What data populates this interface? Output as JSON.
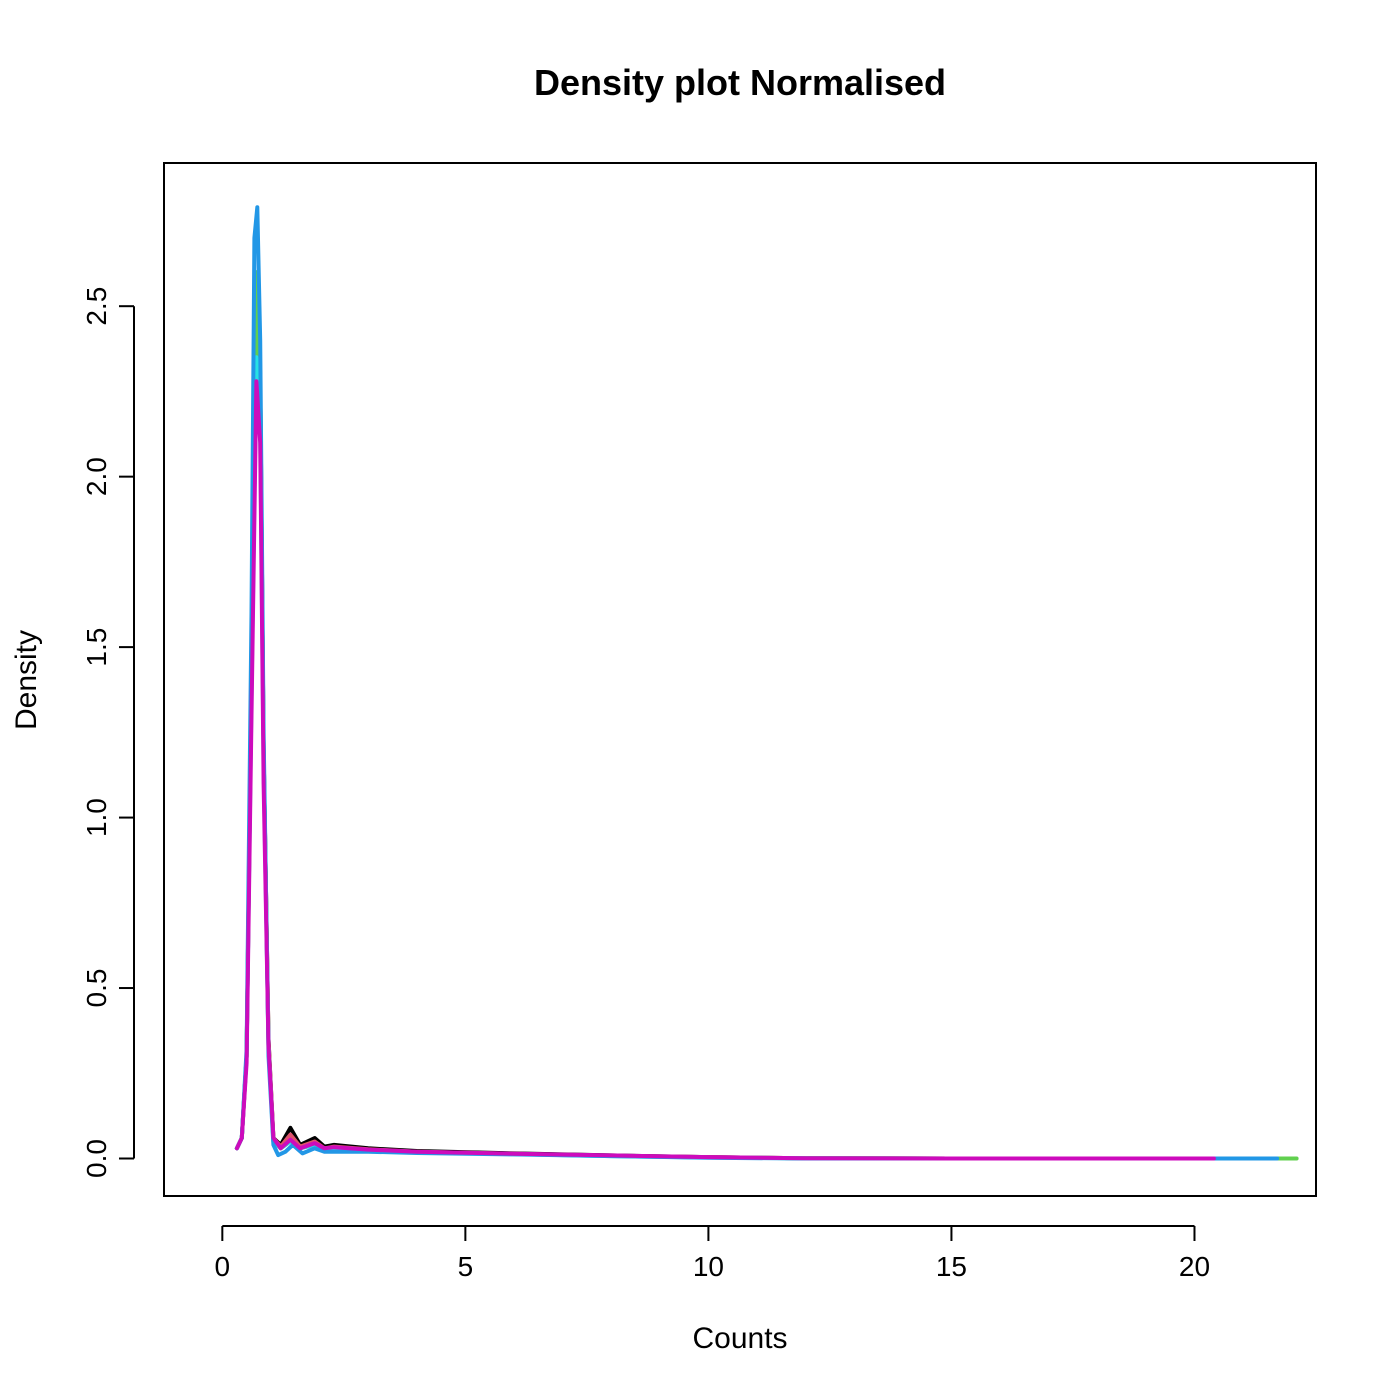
{
  "chart_data": {
    "type": "line",
    "title": "Density plot Normalised",
    "xlabel": "Counts",
    "ylabel": "Density",
    "xlim": [
      -1.2,
      22.5
    ],
    "ylim": [
      -0.11,
      2.92
    ],
    "x_ticks": [
      "0",
      "5",
      "10",
      "15",
      "20"
    ],
    "y_ticks": [
      "0.0",
      "0.5",
      "1.0",
      "1.5",
      "2.0",
      "2.5"
    ],
    "grid": false,
    "legend": "none",
    "series": [
      {
        "color": "#000000",
        "points": [
          [
            0.3,
            0.03
          ],
          [
            0.4,
            0.06
          ],
          [
            0.5,
            0.3
          ],
          [
            0.6,
            1.4
          ],
          [
            0.7,
            2.55
          ],
          [
            0.78,
            2.3
          ],
          [
            0.85,
            1.2
          ],
          [
            0.95,
            0.35
          ],
          [
            1.05,
            0.06
          ],
          [
            1.2,
            0.04
          ],
          [
            1.4,
            0.09
          ],
          [
            1.6,
            0.04
          ],
          [
            1.9,
            0.06
          ],
          [
            2.1,
            0.035
          ],
          [
            2.3,
            0.04
          ],
          [
            3,
            0.03
          ],
          [
            4,
            0.022
          ],
          [
            6,
            0.015
          ],
          [
            8,
            0.009
          ],
          [
            10,
            0.004
          ],
          [
            12,
            0.001
          ],
          [
            15,
            0.0
          ],
          [
            20.4,
            0.0
          ]
        ]
      },
      {
        "color": "#DF536B",
        "points": [
          [
            0.3,
            0.03
          ],
          [
            0.4,
            0.06
          ],
          [
            0.5,
            0.3
          ],
          [
            0.6,
            1.4
          ],
          [
            0.7,
            2.5
          ],
          [
            0.78,
            2.25
          ],
          [
            0.85,
            1.2
          ],
          [
            0.95,
            0.35
          ],
          [
            1.05,
            0.06
          ],
          [
            1.2,
            0.035
          ],
          [
            1.4,
            0.07
          ],
          [
            1.6,
            0.035
          ],
          [
            1.9,
            0.05
          ],
          [
            2.1,
            0.03
          ],
          [
            2.3,
            0.035
          ],
          [
            3,
            0.027
          ],
          [
            4,
            0.02
          ],
          [
            6,
            0.014
          ],
          [
            8,
            0.008
          ],
          [
            10,
            0.004
          ],
          [
            12,
            0.001
          ],
          [
            15,
            0.0
          ],
          [
            20.5,
            0.0
          ]
        ]
      },
      {
        "color": "#61D04F",
        "points": [
          [
            0.3,
            0.03
          ],
          [
            0.4,
            0.06
          ],
          [
            0.5,
            0.3
          ],
          [
            0.6,
            1.45
          ],
          [
            0.7,
            2.6
          ],
          [
            0.78,
            2.3
          ],
          [
            0.85,
            1.2
          ],
          [
            0.95,
            0.33
          ],
          [
            1.05,
            0.05
          ],
          [
            1.2,
            0.03
          ],
          [
            1.4,
            0.05
          ],
          [
            1.6,
            0.03
          ],
          [
            1.9,
            0.04
          ],
          [
            2.1,
            0.028
          ],
          [
            3,
            0.025
          ],
          [
            4,
            0.019
          ],
          [
            6,
            0.013
          ],
          [
            8,
            0.008
          ],
          [
            10,
            0.003
          ],
          [
            12,
            0.001
          ],
          [
            15,
            0.0
          ],
          [
            22.1,
            0.0
          ]
        ]
      },
      {
        "color": "#28E2E5",
        "points": [
          [
            0.3,
            0.03
          ],
          [
            0.4,
            0.06
          ],
          [
            0.5,
            0.3
          ],
          [
            0.6,
            1.35
          ],
          [
            0.7,
            2.35
          ],
          [
            0.78,
            2.15
          ],
          [
            0.85,
            1.15
          ],
          [
            0.95,
            0.33
          ],
          [
            1.05,
            0.05
          ],
          [
            1.2,
            0.03
          ],
          [
            1.4,
            0.05
          ],
          [
            1.6,
            0.03
          ],
          [
            1.9,
            0.04
          ],
          [
            2.1,
            0.028
          ],
          [
            3,
            0.024
          ],
          [
            4,
            0.018
          ],
          [
            6,
            0.013
          ],
          [
            8,
            0.007
          ],
          [
            10,
            0.003
          ],
          [
            12,
            0.001
          ],
          [
            15,
            0.0
          ],
          [
            21.6,
            0.0
          ]
        ]
      },
      {
        "color": "#2297E6",
        "points": [
          [
            0.3,
            0.03
          ],
          [
            0.4,
            0.06
          ],
          [
            0.5,
            0.32
          ],
          [
            0.6,
            1.6
          ],
          [
            0.66,
            2.7
          ],
          [
            0.72,
            2.79
          ],
          [
            0.78,
            2.4
          ],
          [
            0.85,
            1.25
          ],
          [
            0.95,
            0.3
          ],
          [
            1.05,
            0.04
          ],
          [
            1.15,
            0.01
          ],
          [
            1.3,
            0.02
          ],
          [
            1.45,
            0.04
          ],
          [
            1.65,
            0.015
          ],
          [
            1.9,
            0.03
          ],
          [
            2.1,
            0.02
          ],
          [
            3,
            0.02
          ],
          [
            4,
            0.016
          ],
          [
            6,
            0.012
          ],
          [
            8,
            0.007
          ],
          [
            10,
            0.002
          ],
          [
            12,
            0.0
          ],
          [
            15,
            0.0
          ],
          [
            21.7,
            0.0
          ]
        ]
      },
      {
        "color": "#CD0BBC",
        "points": [
          [
            0.3,
            0.03
          ],
          [
            0.4,
            0.06
          ],
          [
            0.5,
            0.28
          ],
          [
            0.6,
            1.3
          ],
          [
            0.7,
            2.28
          ],
          [
            0.78,
            2.1
          ],
          [
            0.85,
            1.1
          ],
          [
            0.95,
            0.33
          ],
          [
            1.05,
            0.06
          ],
          [
            1.2,
            0.03
          ],
          [
            1.4,
            0.055
          ],
          [
            1.6,
            0.03
          ],
          [
            1.9,
            0.045
          ],
          [
            2.1,
            0.03
          ],
          [
            2.3,
            0.033
          ],
          [
            3,
            0.026
          ],
          [
            4,
            0.02
          ],
          [
            6,
            0.014
          ],
          [
            8,
            0.009
          ],
          [
            10,
            0.004
          ],
          [
            12,
            0.001
          ],
          [
            15,
            0.0
          ],
          [
            20.4,
            0.0
          ]
        ]
      }
    ]
  }
}
